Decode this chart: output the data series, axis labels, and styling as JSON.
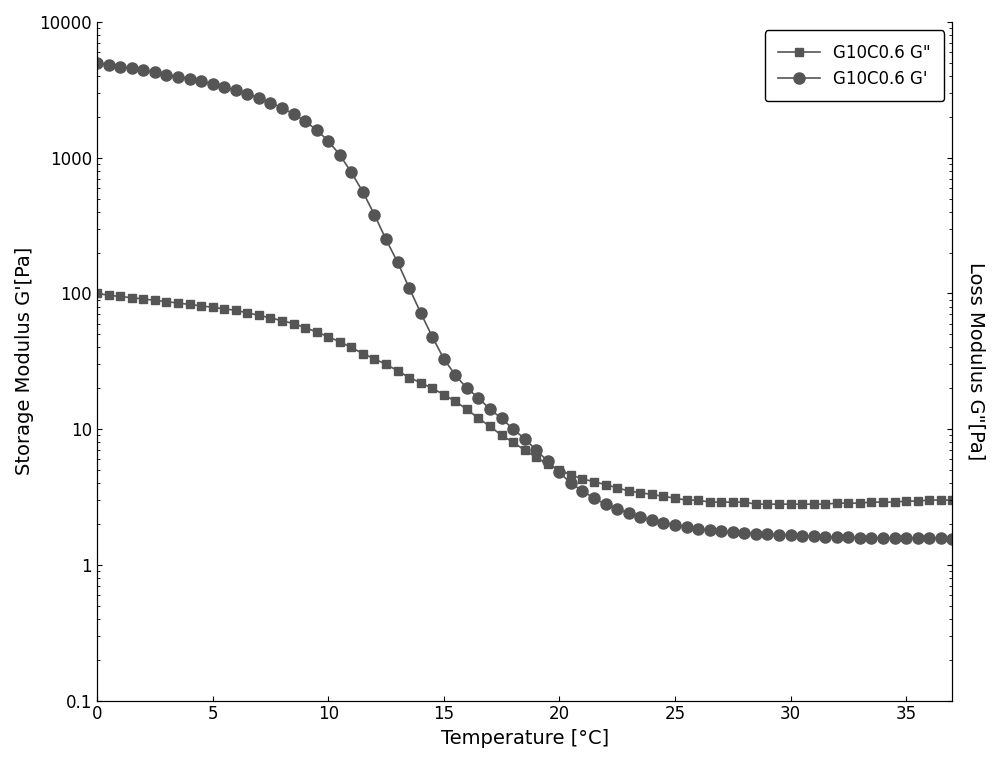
{
  "title": "",
  "xlabel": "Temperature [°C]",
  "ylabel_left": "Storage Modulus G'[Pa]",
  "ylabel_right": "Loss Modulus G\"[Pa]",
  "line_color": "#555555",
  "marker_color": "#555555",
  "background_color": "#ffffff",
  "xlim": [
    0,
    37
  ],
  "ylim": [
    0.1,
    10000
  ],
  "xticks": [
    0,
    5,
    10,
    15,
    20,
    25,
    30,
    35
  ],
  "yticks": [
    0.1,
    1,
    10,
    100,
    1000,
    10000
  ],
  "yticklabels": [
    "0.1",
    "1",
    "10",
    "100",
    "1000",
    "10000"
  ],
  "legend_labels": [
    "G10C0.6 G\"",
    "G10C0.6 G'"
  ],
  "G_double_prime_x": [
    0.0,
    0.5,
    1.0,
    1.5,
    2.0,
    2.5,
    3.0,
    3.5,
    4.0,
    4.5,
    5.0,
    5.5,
    6.0,
    6.5,
    7.0,
    7.5,
    8.0,
    8.5,
    9.0,
    9.5,
    10.0,
    10.5,
    11.0,
    11.5,
    12.0,
    12.5,
    13.0,
    13.5,
    14.0,
    14.5,
    15.0,
    15.5,
    16.0,
    16.5,
    17.0,
    17.5,
    18.0,
    18.5,
    19.0,
    19.5,
    20.0,
    20.5,
    21.0,
    21.5,
    22.0,
    22.5,
    23.0,
    23.5,
    24.0,
    24.5,
    25.0,
    25.5,
    26.0,
    26.5,
    27.0,
    27.5,
    28.0,
    28.5,
    29.0,
    29.5,
    30.0,
    30.5,
    31.0,
    31.5,
    32.0,
    32.5,
    33.0,
    33.5,
    34.0,
    34.5,
    35.0,
    35.5,
    36.0,
    36.5,
    37.0
  ],
  "G_double_prime_y": [
    100,
    97,
    95,
    93,
    91,
    89,
    87,
    85,
    83,
    81,
    79,
    77,
    75,
    72,
    69,
    66,
    63,
    60,
    56,
    52,
    48,
    44,
    40,
    36,
    33,
    30,
    27,
    24,
    22,
    20,
    18,
    16,
    14,
    12,
    10.5,
    9.0,
    8.0,
    7.0,
    6.2,
    5.5,
    5.0,
    4.6,
    4.3,
    4.1,
    3.9,
    3.7,
    3.5,
    3.4,
    3.3,
    3.2,
    3.1,
    3.0,
    3.0,
    2.9,
    2.9,
    2.9,
    2.9,
    2.8,
    2.8,
    2.8,
    2.8,
    2.8,
    2.8,
    2.8,
    2.85,
    2.85,
    2.85,
    2.9,
    2.9,
    2.9,
    2.95,
    2.95,
    3.0,
    3.0,
    3.0
  ],
  "G_prime_x": [
    0.0,
    0.5,
    1.0,
    1.5,
    2.0,
    2.5,
    3.0,
    3.5,
    4.0,
    4.5,
    5.0,
    5.5,
    6.0,
    6.5,
    7.0,
    7.5,
    8.0,
    8.5,
    9.0,
    9.5,
    10.0,
    10.5,
    11.0,
    11.5,
    12.0,
    12.5,
    13.0,
    13.5,
    14.0,
    14.5,
    15.0,
    15.5,
    16.0,
    16.5,
    17.0,
    17.5,
    18.0,
    18.5,
    19.0,
    19.5,
    20.0,
    20.5,
    21.0,
    21.5,
    22.0,
    22.5,
    23.0,
    23.5,
    24.0,
    24.5,
    25.0,
    25.5,
    26.0,
    26.5,
    27.0,
    27.5,
    28.0,
    28.5,
    29.0,
    29.5,
    30.0,
    30.5,
    31.0,
    31.5,
    32.0,
    32.5,
    33.0,
    33.5,
    34.0,
    34.5,
    35.0,
    35.5,
    36.0,
    36.5,
    37.0
  ],
  "G_prime_y": [
    5000,
    4850,
    4700,
    4550,
    4400,
    4250,
    4100,
    3950,
    3800,
    3650,
    3500,
    3320,
    3140,
    2960,
    2760,
    2550,
    2330,
    2100,
    1860,
    1600,
    1330,
    1050,
    780,
    560,
    380,
    250,
    170,
    110,
    72,
    48,
    33,
    25,
    20,
    17,
    14,
    12,
    10.0,
    8.5,
    7.0,
    5.8,
    4.8,
    4.0,
    3.5,
    3.1,
    2.8,
    2.6,
    2.4,
    2.25,
    2.15,
    2.05,
    1.97,
    1.9,
    1.85,
    1.8,
    1.77,
    1.74,
    1.72,
    1.7,
    1.68,
    1.66,
    1.65,
    1.63,
    1.62,
    1.61,
    1.6,
    1.6,
    1.59,
    1.59,
    1.58,
    1.58,
    1.57,
    1.57,
    1.57,
    1.57,
    1.56
  ]
}
